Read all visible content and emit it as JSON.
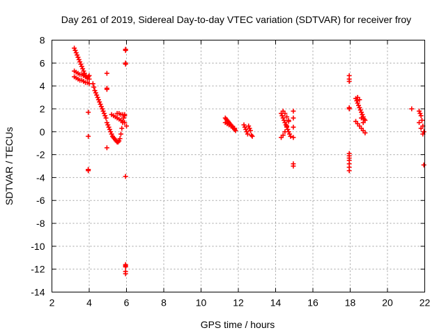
{
  "chart_data": {
    "type": "scatter",
    "title": "Day 261 of 2019, Sidereal Day-to-day VTEC variation (SDTVAR) for receiver froy",
    "xlabel": "GPS time / hours",
    "ylabel": "SDTVAR / TECUs",
    "xlim": [
      2,
      22
    ],
    "ylim": [
      -14,
      8
    ],
    "xticks": [
      2,
      4,
      6,
      8,
      10,
      12,
      14,
      16,
      18,
      20,
      22
    ],
    "yticks": [
      8,
      6,
      4,
      2,
      0,
      -2,
      -4,
      -6,
      -8,
      -10,
      -12,
      -14
    ],
    "grid": true,
    "marker": "plus",
    "color": "#ff0000",
    "series": [
      {
        "name": "SDTVAR",
        "x": [
          3.2,
          3.25,
          3.3,
          3.35,
          3.4,
          3.45,
          3.5,
          3.55,
          3.6,
          3.65,
          3.7,
          3.75,
          3.8,
          3.85,
          3.9,
          3.95,
          4.0,
          3.2,
          3.3,
          3.4,
          3.5,
          3.6,
          3.7,
          3.8,
          3.9,
          4.0,
          3.2,
          3.3,
          3.4,
          3.5,
          3.6,
          3.7,
          3.8,
          3.9,
          4.0,
          3.95,
          3.95,
          3.95,
          3.95,
          3.95,
          4.2,
          4.25,
          4.3,
          4.35,
          4.4,
          4.45,
          4.5,
          4.55,
          4.6,
          4.65,
          4.7,
          4.75,
          4.8,
          4.85,
          4.9,
          4.95,
          5.0,
          5.05,
          5.1,
          5.15,
          5.2,
          5.25,
          5.3,
          5.35,
          5.4,
          5.45,
          5.5,
          5.55,
          5.6,
          5.65,
          5.7,
          5.75,
          5.8,
          5.85,
          5.9,
          4.95,
          4.95,
          4.95,
          4.95,
          5.2,
          5.3,
          5.4,
          5.5,
          5.6,
          5.7,
          5.8,
          5.9,
          5.5,
          5.6,
          5.7,
          5.8,
          5.9,
          6.0,
          5.95,
          5.95,
          5.95,
          5.95,
          5.95,
          5.95,
          5.95,
          5.95,
          5.95,
          5.95,
          11.3,
          11.35,
          11.4,
          11.45,
          11.5,
          11.55,
          11.6,
          11.65,
          11.7,
          11.75,
          11.8,
          11.85,
          11.3,
          11.4,
          11.5,
          11.6,
          11.7,
          11.8,
          12.3,
          12.35,
          12.4,
          12.45,
          12.5,
          12.55,
          12.6,
          12.65,
          12.7,
          12.75,
          14.3,
          14.35,
          14.4,
          14.45,
          14.5,
          14.55,
          14.6,
          14.65,
          14.7,
          14.75,
          14.8,
          14.3,
          14.4,
          14.5,
          14.6,
          14.7,
          14.4,
          14.5,
          14.6,
          14.7,
          14.95,
          14.95,
          14.95,
          14.95,
          14.95,
          14.95,
          17.95,
          17.95,
          17.95,
          17.95,
          17.95,
          17.95,
          17.95,
          17.95,
          17.95,
          17.95,
          17.95,
          17.95,
          18.3,
          18.35,
          18.4,
          18.45,
          18.5,
          18.55,
          18.6,
          18.65,
          18.7,
          18.75,
          18.8,
          18.3,
          18.4,
          18.5,
          18.6,
          18.7,
          18.8,
          18.4,
          18.5,
          18.6,
          18.7,
          21.3,
          21.7,
          21.75,
          21.8,
          21.85,
          21.9,
          21.95,
          21.7,
          21.8,
          21.9,
          21.95
        ],
        "y": [
          7.3,
          7.1,
          6.9,
          6.7,
          6.5,
          6.3,
          6.1,
          5.9,
          5.7,
          5.5,
          5.3,
          5.1,
          4.9,
          4.8,
          4.7,
          4.8,
          4.9,
          5.3,
          5.2,
          5.1,
          5.0,
          5.0,
          4.9,
          4.8,
          4.7,
          4.6,
          4.8,
          4.7,
          4.6,
          4.5,
          4.5,
          4.4,
          4.3,
          4.3,
          4.2,
          1.7,
          -0.4,
          -3.3,
          -3.4,
          -3.3,
          4.2,
          3.9,
          3.6,
          3.4,
          3.2,
          3.0,
          2.8,
          2.6,
          2.4,
          2.2,
          2.0,
          1.8,
          1.6,
          1.4,
          1.2,
          0.8,
          0.6,
          0.4,
          0.2,
          0.0,
          -0.2,
          -0.4,
          -0.5,
          -0.6,
          -0.7,
          -0.8,
          -0.9,
          -0.9,
          -0.8,
          -0.6,
          -0.2,
          0.3,
          0.8,
          1.2,
          1.5,
          5.1,
          3.8,
          3.7,
          -1.4,
          1.5,
          1.4,
          1.3,
          1.2,
          1.1,
          1.0,
          0.9,
          0.8,
          1.6,
          1.6,
          1.5,
          1.5,
          1.4,
          0.5,
          7.2,
          7.1,
          6.0,
          5.9,
          -3.9,
          -11.6,
          -11.7,
          -11.8,
          -12.2,
          -12.4,
          1.2,
          1.1,
          1.0,
          0.9,
          0.8,
          0.7,
          0.6,
          0.5,
          0.4,
          0.3,
          0.2,
          0.1,
          0.8,
          0.7,
          0.6,
          0.5,
          0.4,
          0.3,
          0.6,
          0.4,
          0.2,
          0.0,
          -0.2,
          0.5,
          0.3,
          0.1,
          -0.3,
          -0.4,
          1.6,
          1.4,
          1.2,
          1.0,
          0.8,
          0.6,
          0.4,
          0.2,
          0.0,
          -0.2,
          -0.4,
          -0.5,
          -0.3,
          0.0,
          0.5,
          0.9,
          1.8,
          1.6,
          1.3,
          1.0,
          1.8,
          1.2,
          0.4,
          -0.5,
          -2.8,
          -3.0,
          4.9,
          4.6,
          4.4,
          2.1,
          2.0,
          -1.9,
          -2.1,
          -2.3,
          -2.5,
          -2.8,
          -3.1,
          -3.4,
          2.9,
          2.7,
          2.5,
          2.3,
          2.1,
          1.9,
          1.7,
          1.5,
          1.3,
          1.1,
          1.0,
          0.9,
          0.7,
          0.5,
          0.3,
          0.1,
          -0.1,
          3.0,
          2.8,
          1.2,
          0.8,
          2.0,
          1.8,
          1.6,
          1.4,
          1.0,
          0.5,
          0.0,
          0.8,
          0.3,
          -0.2,
          -2.9
        ]
      }
    ]
  }
}
